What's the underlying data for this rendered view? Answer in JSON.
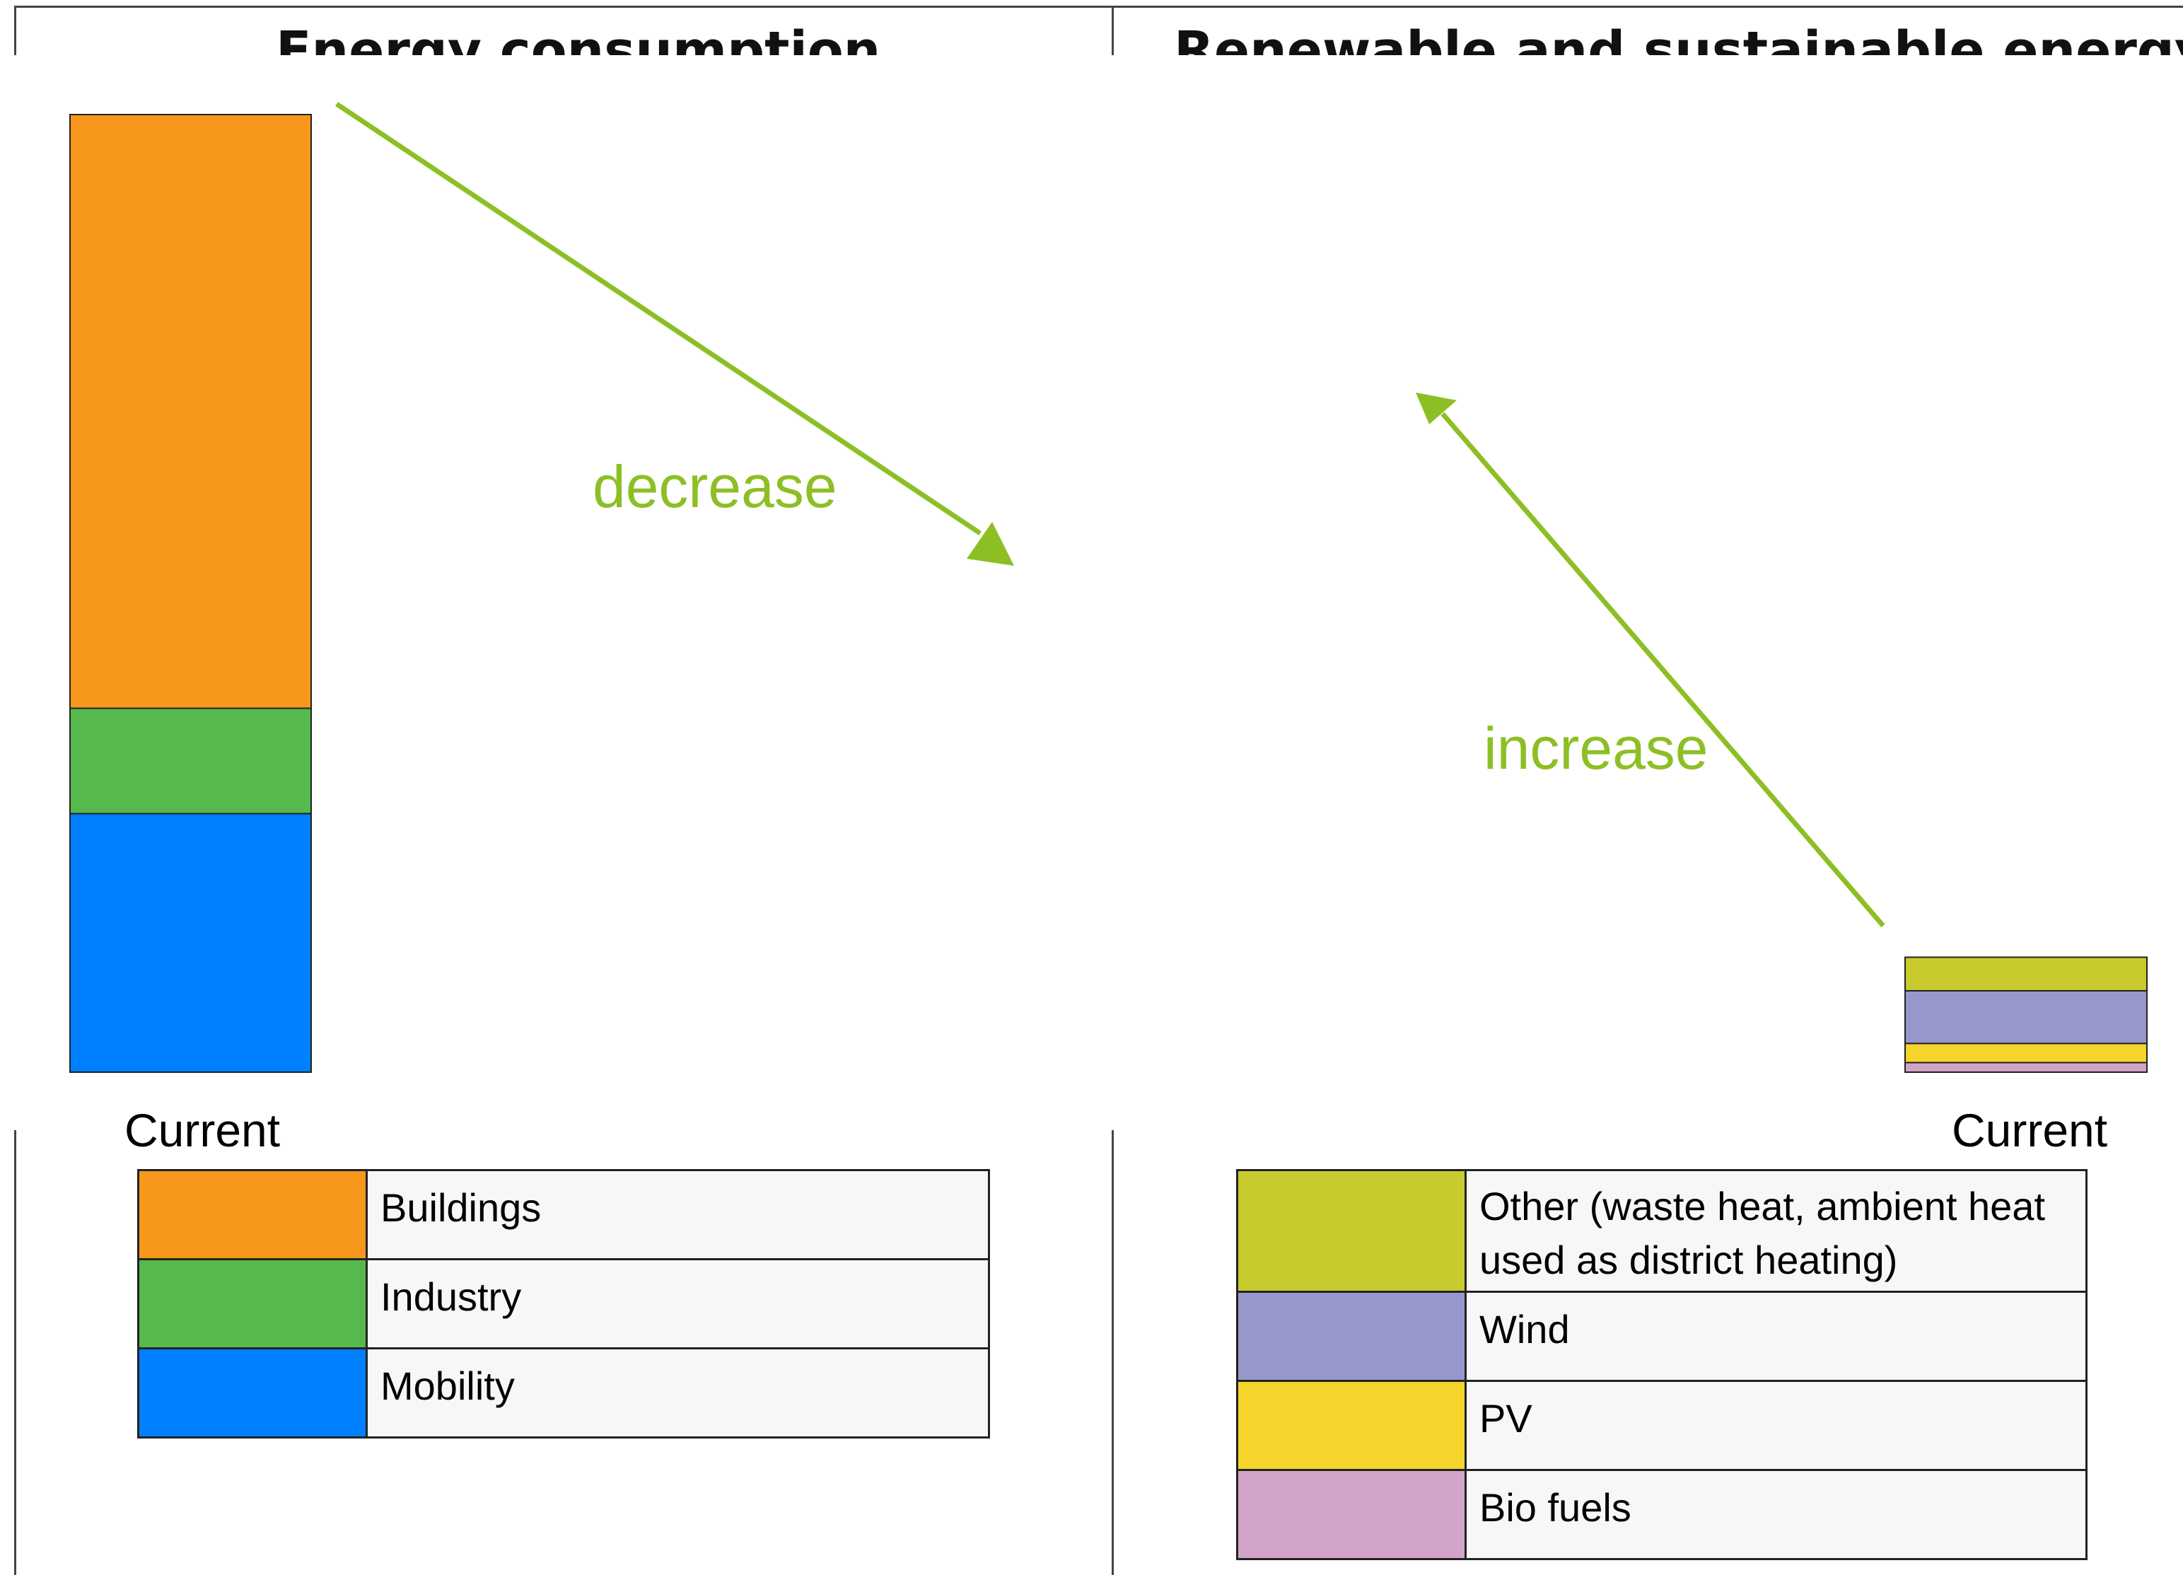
{
  "left_panel": {
    "title": "Energy consumption",
    "bar_label": "Current",
    "arrow_label": "decrease",
    "segments": [
      {
        "name": "Mobility",
        "value": 27,
        "color": "#0080ff"
      },
      {
        "name": "Industry",
        "value": 11,
        "color": "#56b94b"
      },
      {
        "name": "Buildings",
        "value": 62,
        "color": "#f7981d"
      }
    ],
    "legend": [
      {
        "label": "Buildings",
        "color": "#f7981d"
      },
      {
        "label": "Industry",
        "color": "#56b94b"
      },
      {
        "label": "Mobility",
        "color": "#0080ff"
      }
    ]
  },
  "right_panel": {
    "title": "Renewable and sustainable energy",
    "bar_label": "Current",
    "arrow_label": "increase",
    "segments": [
      {
        "name": "Bio fuels",
        "value": 1,
        "color": "#d2a4c8"
      },
      {
        "name": "PV",
        "value": 2,
        "color": "#f5d52b"
      },
      {
        "name": "Wind",
        "value": 5.5,
        "color": "#9897cb"
      },
      {
        "name": "Other",
        "value": 3.5,
        "color": "#c8cb2d"
      }
    ],
    "legend": [
      {
        "label": "Other (waste heat, ambient heat used as district heating)",
        "color": "#c8cb2d"
      },
      {
        "label": "Wind",
        "color": "#9897cb"
      },
      {
        "label": "PV",
        "color": "#f5d52b"
      },
      {
        "label": "Bio fuels",
        "color": "#d2a4c8"
      }
    ]
  },
  "colors": {
    "arrow": "#8dbf25"
  }
}
